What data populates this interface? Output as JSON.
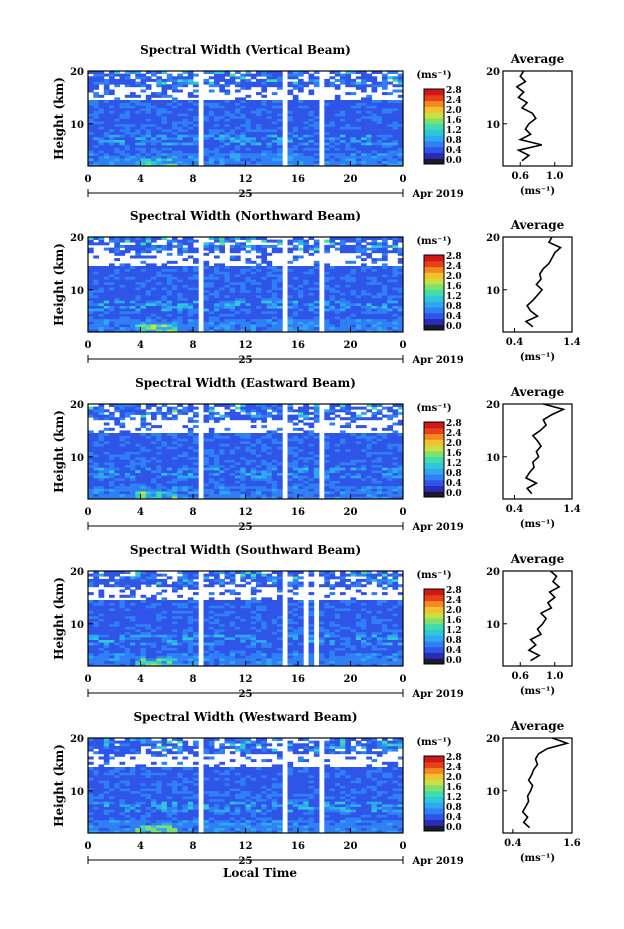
{
  "colors": {
    "colormap": [
      "#1a1a2e",
      "#2b2bb8",
      "#2f55e8",
      "#2f7ff5",
      "#2fa8f2",
      "#30c8d8",
      "#3fdcae",
      "#7fe070",
      "#c8e040",
      "#f5c030",
      "#f28a20",
      "#e8401a",
      "#d01818"
    ],
    "no_data": "#ffffff"
  },
  "footer": {
    "xlabel": "Local Time"
  },
  "chart_data": [
    {
      "type": "heatmap",
      "title": "Spectral Width (Vertical Beam)",
      "ylabel": "Height (km)",
      "ylim": [
        2,
        20
      ],
      "yticks": [
        10,
        20
      ],
      "xlim": [
        0,
        24
      ],
      "xticks": [
        "0",
        "4",
        "8",
        "12",
        "16",
        "20",
        "0"
      ],
      "date_label": "25",
      "date_right": "Apr 2019",
      "colorbar": {
        "unit": "(ms⁻¹)",
        "ticks": [
          "0.0",
          "0.4",
          "0.8",
          "1.2",
          "1.6",
          "2.0",
          "2.4",
          "2.8"
        ],
        "range": [
          0,
          3.0
        ]
      },
      "data_gaps_hours": [
        [
          8.3,
          8.9
        ],
        [
          15.0,
          15.4
        ],
        [
          17.5,
          17.8
        ]
      ],
      "average_profile": {
        "title": "Average",
        "xlim": [
          0.4,
          1.2
        ],
        "xticks": [
          "0.6",
          "1.0"
        ],
        "xunit": "(ms⁻¹)",
        "height_km": [
          3,
          4,
          5,
          6,
          7,
          8,
          9,
          10,
          11,
          12,
          13,
          14,
          15,
          16,
          17,
          18,
          19,
          20
        ],
        "values": [
          0.62,
          0.7,
          0.58,
          0.85,
          0.6,
          0.72,
          0.66,
          0.7,
          0.78,
          0.74,
          0.62,
          0.68,
          0.58,
          0.64,
          0.56,
          0.66,
          0.6,
          0.64
        ]
      }
    },
    {
      "type": "heatmap",
      "title": "Spectral Width (Northward Beam)",
      "ylabel": "Height (km)",
      "ylim": [
        2,
        20
      ],
      "yticks": [
        10,
        20
      ],
      "xlim": [
        0,
        24
      ],
      "xticks": [
        "0",
        "4",
        "8",
        "12",
        "16",
        "20",
        "0"
      ],
      "date_label": "25",
      "date_right": "Apr 2019",
      "colorbar": {
        "unit": "(ms⁻¹)",
        "ticks": [
          "0.0",
          "0.4",
          "0.8",
          "1.2",
          "1.6",
          "2.0",
          "2.4",
          "2.8"
        ],
        "range": [
          0,
          3.0
        ]
      },
      "data_gaps_hours": [
        [
          8.3,
          8.9
        ],
        [
          15.0,
          15.4
        ],
        [
          17.5,
          17.8
        ]
      ],
      "average_profile": {
        "title": "Average",
        "xlim": [
          0.2,
          1.4
        ],
        "xticks": [
          "0.4",
          "1.4"
        ],
        "xunit": "(ms⁻¹)",
        "height_km": [
          3,
          4,
          5,
          6,
          7,
          8,
          9,
          10,
          11,
          12,
          13,
          14,
          15,
          16,
          17,
          18,
          19,
          20
        ],
        "values": [
          0.72,
          0.6,
          0.8,
          0.68,
          0.62,
          0.72,
          0.8,
          0.88,
          0.78,
          0.86,
          0.84,
          0.9,
          1.0,
          1.05,
          1.1,
          1.2,
          1.0,
          1.05
        ]
      }
    },
    {
      "type": "heatmap",
      "title": "Spectral Width (Eastward Beam)",
      "ylabel": "Height (km)",
      "ylim": [
        2,
        20
      ],
      "yticks": [
        10,
        20
      ],
      "xlim": [
        0,
        24
      ],
      "xticks": [
        "0",
        "4",
        "8",
        "12",
        "16",
        "20",
        "0"
      ],
      "date_label": "25",
      "date_right": "Apr 2019",
      "colorbar": {
        "unit": "(ms⁻¹)",
        "ticks": [
          "0.0",
          "0.4",
          "0.8",
          "1.2",
          "1.6",
          "2.0",
          "2.4",
          "2.8"
        ],
        "range": [
          0,
          3.0
        ]
      },
      "data_gaps_hours": [
        [
          8.3,
          8.9
        ],
        [
          15.0,
          15.4
        ],
        [
          17.5,
          17.8
        ]
      ],
      "average_profile": {
        "title": "Average",
        "xlim": [
          0.2,
          1.4
        ],
        "xticks": [
          "0.4",
          "1.4"
        ],
        "xunit": "(ms⁻¹)",
        "height_km": [
          3,
          4,
          5,
          6,
          7,
          8,
          9,
          10,
          11,
          12,
          13,
          14,
          15,
          16,
          17,
          18,
          19,
          20
        ],
        "values": [
          0.7,
          0.62,
          0.78,
          0.6,
          0.66,
          0.74,
          0.72,
          0.82,
          0.78,
          0.86,
          0.8,
          0.72,
          0.85,
          0.95,
          0.9,
          1.05,
          1.25,
          0.9
        ]
      }
    },
    {
      "type": "heatmap",
      "title": "Spectral Width (Southward Beam)",
      "ylabel": "Height (km)",
      "ylim": [
        2,
        20
      ],
      "yticks": [
        10,
        20
      ],
      "xlim": [
        0,
        24
      ],
      "xticks": [
        "0",
        "4",
        "8",
        "12",
        "16",
        "20",
        "0"
      ],
      "date_label": "25",
      "date_right": "Apr 2019",
      "colorbar": {
        "unit": "(ms⁻¹)",
        "ticks": [
          "0.0",
          "0.4",
          "0.8",
          "1.2",
          "1.6",
          "2.0",
          "2.4",
          "2.8"
        ],
        "range": [
          0,
          3.0
        ]
      },
      "data_gaps_hours": [
        [
          8.3,
          8.9
        ],
        [
          15.0,
          15.4
        ],
        [
          16.6,
          16.8
        ],
        [
          17.4,
          17.6
        ]
      ],
      "average_profile": {
        "title": "Average",
        "xlim": [
          0.4,
          1.2
        ],
        "xticks": [
          "0.6",
          "1.0"
        ],
        "xunit": "(ms⁻¹)",
        "height_km": [
          3,
          4,
          5,
          6,
          7,
          8,
          9,
          10,
          11,
          12,
          13,
          14,
          15,
          16,
          17,
          18,
          19,
          20
        ],
        "values": [
          0.72,
          0.82,
          0.7,
          0.78,
          0.72,
          0.84,
          0.8,
          0.86,
          0.9,
          0.84,
          0.96,
          0.92,
          1.0,
          0.94,
          1.05,
          0.98,
          1.02,
          0.95
        ]
      }
    },
    {
      "type": "heatmap",
      "title": "Spectral Width (Westward Beam)",
      "ylabel": "Height (km)",
      "ylim": [
        2,
        20
      ],
      "yticks": [
        10,
        20
      ],
      "xlim": [
        0,
        24
      ],
      "xticks": [
        "0",
        "4",
        "8",
        "12",
        "16",
        "20",
        "0"
      ],
      "date_label": "25",
      "date_right": "Apr 2019",
      "colorbar": {
        "unit": "(ms⁻¹)",
        "ticks": [
          "0.0",
          "0.4",
          "0.8",
          "1.2",
          "1.6",
          "2.0",
          "2.4",
          "2.8"
        ],
        "range": [
          0,
          3.0
        ]
      },
      "data_gaps_hours": [
        [
          8.3,
          8.9
        ],
        [
          15.0,
          15.4
        ],
        [
          17.5,
          17.8
        ]
      ],
      "average_profile": {
        "title": "Average",
        "xlim": [
          0.2,
          1.6
        ],
        "xticks": [
          "0.4",
          "1.6"
        ],
        "xunit": "(ms⁻¹)",
        "height_km": [
          3,
          4,
          5,
          6,
          7,
          8,
          9,
          10,
          11,
          12,
          13,
          14,
          15,
          16,
          17,
          18,
          19,
          20
        ],
        "values": [
          0.74,
          0.62,
          0.7,
          0.6,
          0.66,
          0.72,
          0.7,
          0.76,
          0.8,
          0.72,
          0.78,
          0.82,
          0.9,
          0.86,
          0.92,
          1.1,
          1.5,
          1.2
        ]
      }
    }
  ]
}
